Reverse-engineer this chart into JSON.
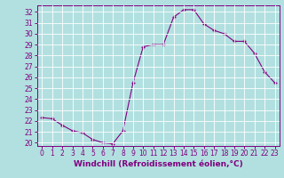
{
  "x": [
    0,
    1,
    2,
    3,
    4,
    5,
    6,
    7,
    8,
    9,
    10,
    11,
    12,
    13,
    14,
    15,
    16,
    17,
    18,
    19,
    20,
    21,
    22,
    23
  ],
  "y": [
    22.3,
    22.2,
    21.6,
    21.1,
    20.9,
    20.3,
    20.0,
    19.9,
    21.1,
    25.5,
    28.8,
    29.0,
    29.0,
    31.5,
    32.2,
    32.2,
    30.9,
    30.3,
    30.0,
    29.3,
    29.3,
    28.2,
    26.5,
    25.5
  ],
  "xlim": [
    -0.5,
    23.5
  ],
  "ylim": [
    19.7,
    32.6
  ],
  "yticks": [
    20,
    21,
    22,
    23,
    24,
    25,
    26,
    27,
    28,
    29,
    30,
    31,
    32
  ],
  "xticks": [
    0,
    1,
    2,
    3,
    4,
    5,
    6,
    7,
    8,
    9,
    10,
    11,
    12,
    13,
    14,
    15,
    16,
    17,
    18,
    19,
    20,
    21,
    22,
    23
  ],
  "xlabel": "Windchill (Refroidissement éolien,°C)",
  "line_color": "#800080",
  "marker": "+",
  "bg_color": "#b2e0e0",
  "grid_color": "#ffffff",
  "text_color": "#800080",
  "label_fontsize": 6.5,
  "tick_fontsize": 5.5
}
